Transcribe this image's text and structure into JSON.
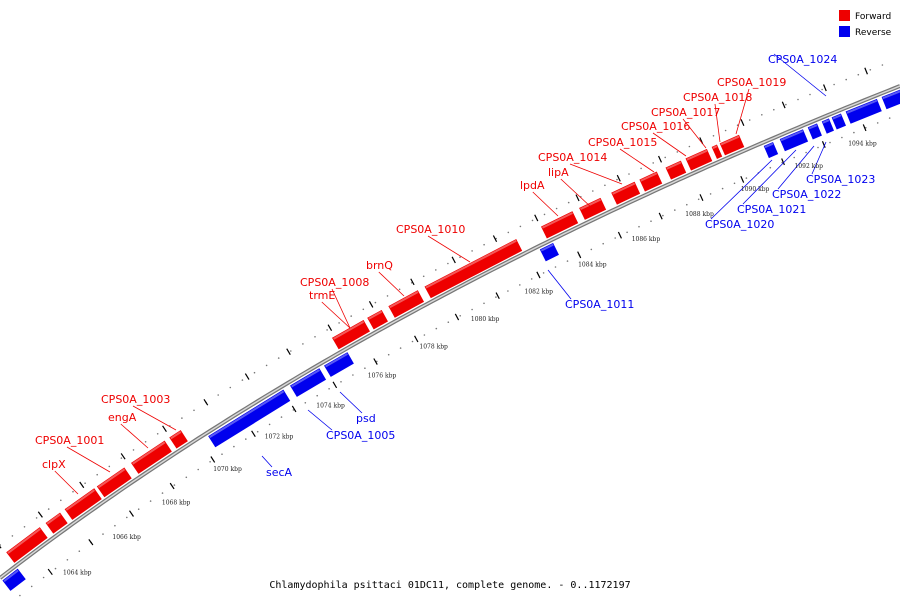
{
  "legend": {
    "forward_label": "Forward",
    "reverse_label": "Reverse"
  },
  "colors": {
    "forward": "#ee0000",
    "reverse": "#0000ee",
    "backbone": "#888888"
  },
  "caption": "Chlamydophila psittaci 01DC11, complete genome. - 0..1172197",
  "scale": {
    "unit": "kbp",
    "labels": [
      "1064 kbp",
      "1066 kbp",
      "1068 kbp",
      "1070 kbp",
      "1072 kbp",
      "1074 kbp",
      "1076 kbp",
      "1078 kbp",
      "1080 kbp",
      "1082 kbp",
      "1084 kbp",
      "1086 kbp",
      "1088 kbp",
      "1090 kbp",
      "1092 kbp",
      "1094 kbp"
    ]
  },
  "genes": {
    "forward": [
      "clpX",
      "CPS0A_1001",
      "engA",
      "CPS0A_1003",
      "CPS0A_1008",
      "trmE",
      "brnQ",
      "CPS0A_1010",
      "lpdA",
      "lipA",
      "CPS0A_1014",
      "CPS0A_1015",
      "CPS0A_1016",
      "CPS0A_1017",
      "CPS0A_1018",
      "CPS0A_1019"
    ],
    "reverse": [
      "secA",
      "CPS0A_1005",
      "psd",
      "CPS0A_1011",
      "CPS0A_1020",
      "CPS0A_1021",
      "CPS0A_1022",
      "CPS0A_1023",
      "CPS0A_1024"
    ]
  }
}
